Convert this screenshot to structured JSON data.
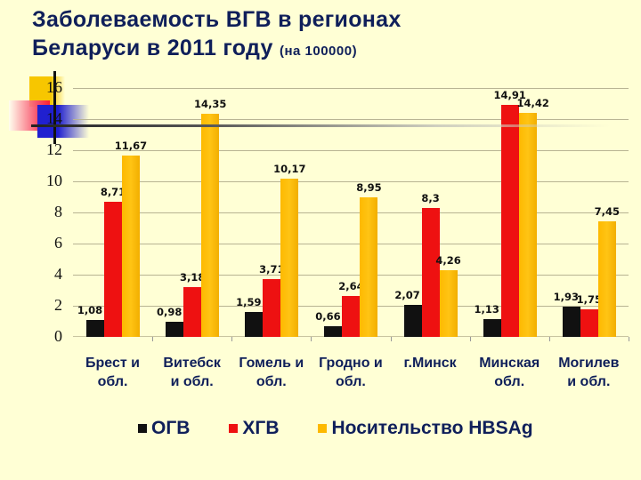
{
  "title": {
    "line1": "Заболеваемость ВГВ в регионах",
    "line2": "Беларуси в 2011 году",
    "unit": "(на 100000)"
  },
  "colors": {
    "background": "#FFFFD5",
    "title": "#0F1F5A",
    "ogv": "#111111",
    "hgv": "#EE1111",
    "hbsag": "#FDB900"
  },
  "legend": {
    "items": [
      {
        "label": "ОГВ",
        "color": "#111111"
      },
      {
        "label": "ХГВ",
        "color": "#EE1111"
      },
      {
        "label": "Носительство HBSAg",
        "color": "#FDB900"
      }
    ]
  },
  "chart_data": {
    "type": "bar",
    "title": "Заболеваемость ВГВ в регионах Беларуси в 2011 году (на 100000)",
    "xlabel": "",
    "ylabel": "",
    "ylim": [
      0,
      16
    ],
    "yticks": [
      0,
      2,
      4,
      6,
      8,
      10,
      12,
      14,
      16
    ],
    "grid": true,
    "legend_position": "bottom",
    "categories": [
      "Брест и обл.",
      "Витебск и обл.",
      "Гомель и обл.",
      "Гродно и обл.",
      "г.Минск",
      "Минская обл.",
      "Могилев и обл."
    ],
    "category_lines": [
      [
        "Брест и",
        "обл."
      ],
      [
        "Витебск",
        "и обл."
      ],
      [
        "Гомель и",
        "обл."
      ],
      [
        "Гродно и",
        "обл."
      ],
      [
        "г.Минск",
        ""
      ],
      [
        "Минская",
        "обл."
      ],
      [
        "Могилев",
        "и обл."
      ]
    ],
    "series": [
      {
        "name": "ОГВ",
        "values": [
          1.08,
          0.98,
          1.59,
          0.66,
          2.07,
          1.13,
          1.93
        ],
        "labels": [
          "1,08",
          "0,98",
          "1,59",
          "0,66",
          "2,07",
          "1,13",
          "1,93"
        ]
      },
      {
        "name": "ХГВ",
        "values": [
          8.71,
          3.18,
          3.71,
          2.64,
          8.3,
          14.91,
          1.75
        ],
        "labels": [
          "8,71",
          "3,18",
          "3,71",
          "2,64",
          "8,3",
          "14,91",
          "1,75"
        ]
      },
      {
        "name": "Носительство HBSAg",
        "values": [
          11.67,
          14.35,
          10.17,
          8.95,
          4.26,
          14.42,
          7.45
        ],
        "labels": [
          "11,67",
          "14,35",
          "10,17",
          "8,95",
          "4,26",
          "14,42",
          "7,45"
        ]
      }
    ]
  }
}
